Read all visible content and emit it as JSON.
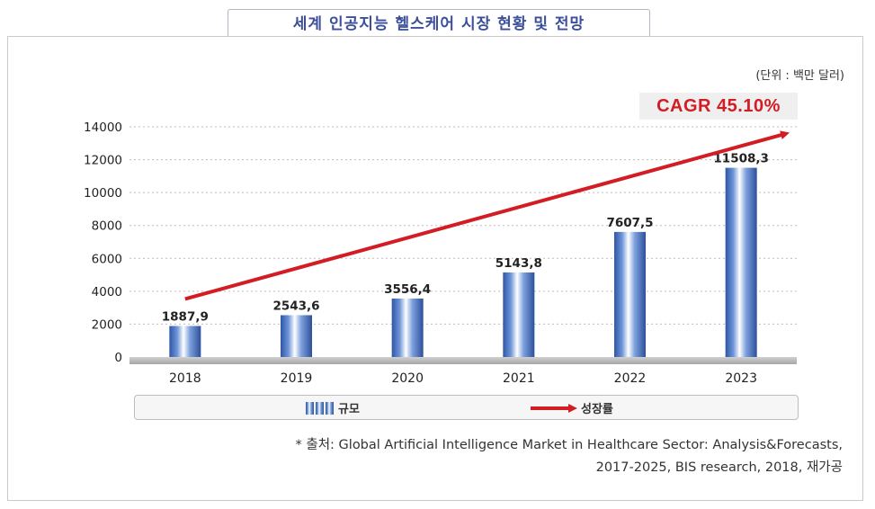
{
  "title": "세계 인공지능 헬스케어 시장 현황 및 전망",
  "unit_label": "(단위 : 백만 달러)",
  "cagr_label": "CAGR 45.10%",
  "legend": {
    "bar": "규모",
    "line": "성장률"
  },
  "source": {
    "line1": "* 출처: Global Artificial Intelligence Market in Healthcare Sector: Analysis&Forecasts,",
    "line2": "2017-2025, BIS research, 2018, 재가공"
  },
  "colors": {
    "bar": "#4a72c0",
    "arrow": "#d11d23",
    "title": "#3b4f9a"
  },
  "chart_data": {
    "type": "bar",
    "categories": [
      "2018",
      "2019",
      "2020",
      "2021",
      "2022",
      "2023"
    ],
    "values": [
      1887.9,
      2543.6,
      3556.4,
      5143.8,
      7607.5,
      11508.3
    ],
    "value_labels": [
      "1887,9",
      "2543,6",
      "3556,4",
      "5143,8",
      "7607,5",
      "11508,3"
    ],
    "yticks": [
      "0",
      "2000",
      "4000",
      "6000",
      "8000",
      "10000",
      "12000",
      "14000"
    ],
    "ylim": [
      0,
      14000
    ],
    "grid": true,
    "legend_position": "bottom",
    "series": [
      {
        "name": "규모",
        "type": "bar"
      },
      {
        "name": "성장률",
        "type": "arrow"
      }
    ],
    "annotation": "CAGR 45.10%"
  }
}
